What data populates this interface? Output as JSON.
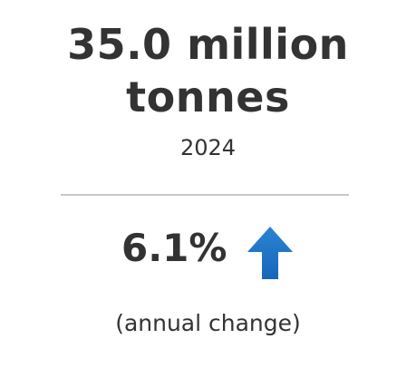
{
  "indicator": {
    "value_line1": "35.0 million",
    "value_line2": "tonnes",
    "year": "2024",
    "change_value": "6.1%",
    "change_direction_icon": "arrow-up-icon",
    "change_caption": "(annual change)"
  },
  "colors": {
    "text": "#333333",
    "divider": "#c8c8c8",
    "arrow_top": "#2b83d4",
    "arrow_bottom": "#1666b8"
  }
}
